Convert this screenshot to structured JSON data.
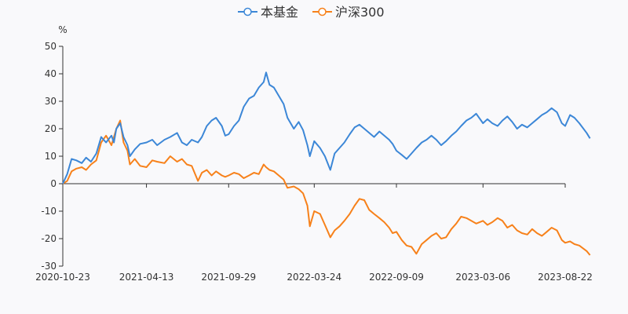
{
  "chart_data": {
    "type": "line",
    "title": "",
    "xlabel": "",
    "ylabel": "%",
    "ylim": [
      -30,
      50
    ],
    "yticks": [
      -30,
      -20,
      -10,
      0,
      10,
      20,
      30,
      40,
      50
    ],
    "xticks": [
      "2020-10-23",
      "2021-04-13",
      "2021-09-29",
      "2022-03-24",
      "2022-09-09",
      "2023-03-06",
      "2023-08-22"
    ],
    "legend_position": "top-center",
    "colors": {
      "fund": "#3c87d7",
      "index": "#f7811a",
      "axis": "#333333",
      "background": "#f9f9fb"
    },
    "series": [
      {
        "name": "本基金",
        "color": "#3c87d7",
        "points": [
          [
            "2020-10-23",
            0.0
          ],
          [
            "2020-11-01",
            3.5
          ],
          [
            "2020-11-10",
            9.0
          ],
          [
            "2020-11-20",
            8.5
          ],
          [
            "2020-12-01",
            7.5
          ],
          [
            "2020-12-10",
            9.5
          ],
          [
            "2020-12-20",
            8.0
          ],
          [
            "2020-12-31",
            11.0
          ],
          [
            "2021-01-10",
            17.0
          ],
          [
            "2021-01-20",
            15.0
          ],
          [
            "2021-01-31",
            17.5
          ],
          [
            "2021-02-05",
            15.0
          ],
          [
            "2021-02-10",
            20.0
          ],
          [
            "2021-02-18",
            22.0
          ],
          [
            "2021-02-25",
            17.0
          ],
          [
            "2021-03-05",
            14.0
          ],
          [
            "2021-03-10",
            10.0
          ],
          [
            "2021-03-20",
            12.5
          ],
          [
            "2021-03-31",
            14.5
          ],
          [
            "2021-04-13",
            15.0
          ],
          [
            "2021-04-25",
            16.0
          ],
          [
            "2021-05-05",
            14.0
          ],
          [
            "2021-05-20",
            16.0
          ],
          [
            "2021-06-01",
            17.0
          ],
          [
            "2021-06-15",
            18.5
          ],
          [
            "2021-06-25",
            15.0
          ],
          [
            "2021-07-05",
            14.0
          ],
          [
            "2021-07-15",
            16.0
          ],
          [
            "2021-07-28",
            15.0
          ],
          [
            "2021-08-05",
            17.0
          ],
          [
            "2021-08-15",
            21.0
          ],
          [
            "2021-08-25",
            23.0
          ],
          [
            "2021-09-03",
            24.0
          ],
          [
            "2021-09-15",
            21.0
          ],
          [
            "2021-09-22",
            17.5
          ],
          [
            "2021-09-29",
            18.0
          ],
          [
            "2021-10-10",
            21.0
          ],
          [
            "2021-10-20",
            23.0
          ],
          [
            "2021-10-30",
            28.0
          ],
          [
            "2021-11-10",
            31.0
          ],
          [
            "2021-11-20",
            32.0
          ],
          [
            "2021-11-30",
            35.0
          ],
          [
            "2021-12-10",
            37.0
          ],
          [
            "2021-12-15",
            40.5
          ],
          [
            "2021-12-22",
            36.0
          ],
          [
            "2021-12-31",
            35.0
          ],
          [
            "2022-01-10",
            32.0
          ],
          [
            "2022-01-20",
            29.0
          ],
          [
            "2022-01-28",
            24.0
          ],
          [
            "2022-02-10",
            20.0
          ],
          [
            "2022-02-20",
            22.5
          ],
          [
            "2022-03-01",
            19.5
          ],
          [
            "2022-03-10",
            14.0
          ],
          [
            "2022-03-15",
            10.0
          ],
          [
            "2022-03-24",
            15.5
          ],
          [
            "2022-04-05",
            13.0
          ],
          [
            "2022-04-15",
            10.0
          ],
          [
            "2022-04-26",
            5.0
          ],
          [
            "2022-05-05",
            11.0
          ],
          [
            "2022-05-15",
            13.0
          ],
          [
            "2022-05-25",
            15.0
          ],
          [
            "2022-06-05",
            18.0
          ],
          [
            "2022-06-15",
            20.5
          ],
          [
            "2022-06-25",
            21.5
          ],
          [
            "2022-07-05",
            20.0
          ],
          [
            "2022-07-15",
            18.5
          ],
          [
            "2022-07-25",
            17.0
          ],
          [
            "2022-08-05",
            19.0
          ],
          [
            "2022-08-15",
            17.5
          ],
          [
            "2022-08-25",
            16.0
          ],
          [
            "2022-09-01",
            14.5
          ],
          [
            "2022-09-09",
            12.0
          ],
          [
            "2022-09-20",
            10.5
          ],
          [
            "2022-09-30",
            9.0
          ],
          [
            "2022-10-10",
            11.0
          ],
          [
            "2022-10-20",
            13.0
          ],
          [
            "2022-10-31",
            15.0
          ],
          [
            "2022-11-10",
            16.0
          ],
          [
            "2022-11-20",
            17.5
          ],
          [
            "2022-11-30",
            16.0
          ],
          [
            "2022-12-10",
            14.0
          ],
          [
            "2022-12-20",
            15.5
          ],
          [
            "2022-12-31",
            17.5
          ],
          [
            "2023-01-10",
            19.0
          ],
          [
            "2023-01-20",
            21.0
          ],
          [
            "2023-01-31",
            23.0
          ],
          [
            "2023-02-10",
            24.0
          ],
          [
            "2023-02-20",
            25.5
          ],
          [
            "2023-03-06",
            22.0
          ],
          [
            "2023-03-15",
            23.5
          ],
          [
            "2023-03-25",
            22.0
          ],
          [
            "2023-04-05",
            21.0
          ],
          [
            "2023-04-15",
            23.0
          ],
          [
            "2023-04-25",
            24.5
          ],
          [
            "2023-05-05",
            22.5
          ],
          [
            "2023-05-15",
            20.0
          ],
          [
            "2023-05-25",
            21.5
          ],
          [
            "2023-06-05",
            20.5
          ],
          [
            "2023-06-15",
            22.0
          ],
          [
            "2023-06-25",
            23.5
          ],
          [
            "2023-07-05",
            25.0
          ],
          [
            "2023-07-15",
            26.0
          ],
          [
            "2023-07-25",
            27.5
          ],
          [
            "2023-08-05",
            26.0
          ],
          [
            "2023-08-15",
            22.0
          ],
          [
            "2023-08-22",
            21.0
          ],
          [
            "2023-09-01",
            25.0
          ],
          [
            "2023-09-10",
            24.0
          ],
          [
            "2023-09-20",
            22.0
          ],
          [
            "2023-10-05",
            18.5
          ],
          [
            "2023-10-12",
            16.5
          ]
        ]
      },
      {
        "name": "沪深300",
        "color": "#f7811a",
        "points": [
          [
            "2020-10-23",
            0.0
          ],
          [
            "2020-11-01",
            1.0
          ],
          [
            "2020-11-10",
            4.5
          ],
          [
            "2020-11-20",
            5.5
          ],
          [
            "2020-12-01",
            6.0
          ],
          [
            "2020-12-10",
            5.0
          ],
          [
            "2020-12-20",
            7.0
          ],
          [
            "2020-12-31",
            8.5
          ],
          [
            "2021-01-10",
            15.0
          ],
          [
            "2021-01-20",
            17.5
          ],
          [
            "2021-01-31",
            14.0
          ],
          [
            "2021-02-05",
            17.0
          ],
          [
            "2021-02-10",
            20.0
          ],
          [
            "2021-02-18",
            23.0
          ],
          [
            "2021-02-25",
            15.0
          ],
          [
            "2021-03-05",
            12.0
          ],
          [
            "2021-03-10",
            7.0
          ],
          [
            "2021-03-20",
            9.0
          ],
          [
            "2021-03-31",
            6.5
          ],
          [
            "2021-04-13",
            6.0
          ],
          [
            "2021-04-25",
            8.5
          ],
          [
            "2021-05-05",
            8.0
          ],
          [
            "2021-05-20",
            7.5
          ],
          [
            "2021-06-01",
            10.0
          ],
          [
            "2021-06-15",
            8.0
          ],
          [
            "2021-06-25",
            9.0
          ],
          [
            "2021-07-05",
            7.0
          ],
          [
            "2021-07-15",
            6.5
          ],
          [
            "2021-07-28",
            1.0
          ],
          [
            "2021-08-05",
            4.0
          ],
          [
            "2021-08-15",
            5.0
          ],
          [
            "2021-08-25",
            3.0
          ],
          [
            "2021-09-03",
            4.5
          ],
          [
            "2021-09-15",
            3.0
          ],
          [
            "2021-09-22",
            2.5
          ],
          [
            "2021-09-29",
            3.0
          ],
          [
            "2021-10-10",
            4.0
          ],
          [
            "2021-10-20",
            3.5
          ],
          [
            "2021-10-30",
            2.0
          ],
          [
            "2021-11-10",
            3.0
          ],
          [
            "2021-11-20",
            4.0
          ],
          [
            "2021-11-30",
            3.5
          ],
          [
            "2021-12-10",
            7.0
          ],
          [
            "2021-12-15",
            6.0
          ],
          [
            "2021-12-22",
            5.0
          ],
          [
            "2021-12-31",
            4.5
          ],
          [
            "2022-01-10",
            3.0
          ],
          [
            "2022-01-20",
            1.5
          ],
          [
            "2022-01-28",
            -1.5
          ],
          [
            "2022-02-10",
            -1.0
          ],
          [
            "2022-02-20",
            -2.0
          ],
          [
            "2022-03-01",
            -3.5
          ],
          [
            "2022-03-10",
            -8.0
          ],
          [
            "2022-03-15",
            -15.5
          ],
          [
            "2022-03-24",
            -10.0
          ],
          [
            "2022-04-05",
            -11.0
          ],
          [
            "2022-04-15",
            -15.0
          ],
          [
            "2022-04-26",
            -19.5
          ],
          [
            "2022-05-05",
            -17.0
          ],
          [
            "2022-05-15",
            -15.5
          ],
          [
            "2022-05-25",
            -13.5
          ],
          [
            "2022-06-05",
            -11.0
          ],
          [
            "2022-06-15",
            -8.0
          ],
          [
            "2022-06-25",
            -5.5
          ],
          [
            "2022-07-05",
            -6.0
          ],
          [
            "2022-07-15",
            -9.5
          ],
          [
            "2022-07-25",
            -11.0
          ],
          [
            "2022-08-05",
            -12.5
          ],
          [
            "2022-08-15",
            -14.0
          ],
          [
            "2022-08-25",
            -16.0
          ],
          [
            "2022-09-01",
            -18.0
          ],
          [
            "2022-09-09",
            -17.5
          ],
          [
            "2022-09-20",
            -20.5
          ],
          [
            "2022-09-30",
            -22.5
          ],
          [
            "2022-10-10",
            -23.0
          ],
          [
            "2022-10-20",
            -25.5
          ],
          [
            "2022-10-31",
            -22.0
          ],
          [
            "2022-11-10",
            -20.5
          ],
          [
            "2022-11-20",
            -19.0
          ],
          [
            "2022-11-30",
            -18.0
          ],
          [
            "2022-12-10",
            -20.0
          ],
          [
            "2022-12-20",
            -19.5
          ],
          [
            "2022-12-31",
            -16.5
          ],
          [
            "2023-01-10",
            -14.5
          ],
          [
            "2023-01-20",
            -12.0
          ],
          [
            "2023-01-31",
            -12.5
          ],
          [
            "2023-02-10",
            -13.5
          ],
          [
            "2023-02-20",
            -14.5
          ],
          [
            "2023-03-06",
            -13.5
          ],
          [
            "2023-03-15",
            -15.0
          ],
          [
            "2023-03-25",
            -14.0
          ],
          [
            "2023-04-05",
            -12.5
          ],
          [
            "2023-04-15",
            -13.5
          ],
          [
            "2023-04-25",
            -16.0
          ],
          [
            "2023-05-05",
            -15.0
          ],
          [
            "2023-05-15",
            -17.0
          ],
          [
            "2023-05-25",
            -18.0
          ],
          [
            "2023-06-05",
            -18.5
          ],
          [
            "2023-06-15",
            -16.5
          ],
          [
            "2023-06-25",
            -18.0
          ],
          [
            "2023-07-05",
            -19.0
          ],
          [
            "2023-07-15",
            -17.5
          ],
          [
            "2023-07-25",
            -16.0
          ],
          [
            "2023-08-05",
            -17.0
          ],
          [
            "2023-08-15",
            -20.5
          ],
          [
            "2023-08-22",
            -21.5
          ],
          [
            "2023-09-01",
            -21.0
          ],
          [
            "2023-09-10",
            -22.0
          ],
          [
            "2023-09-20",
            -22.5
          ],
          [
            "2023-10-05",
            -24.5
          ],
          [
            "2023-10-12",
            -26.0
          ]
        ]
      }
    ]
  }
}
